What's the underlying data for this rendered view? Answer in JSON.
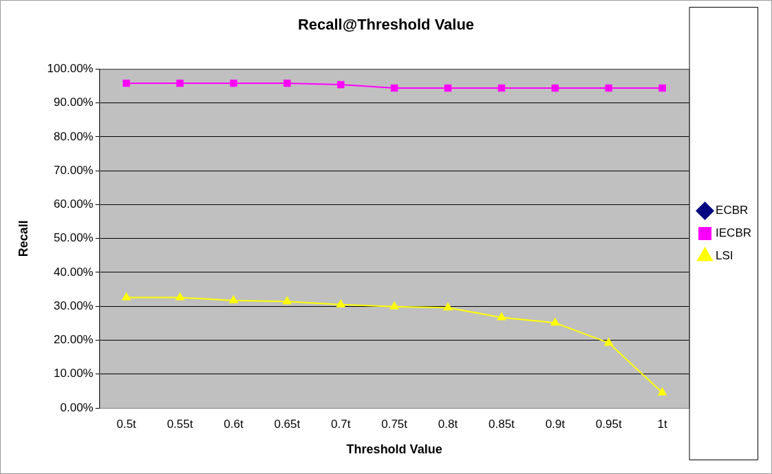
{
  "chart_data": {
    "type": "line",
    "title": "Recall@Threshold Value",
    "xlabel": "Threshold Value",
    "ylabel": "Recall",
    "categories": [
      "0.5t",
      "0.55t",
      "0.6t",
      "0.65t",
      "0.7t",
      "0.75t",
      "0.8t",
      "0.85t",
      "0.9t",
      "0.95t",
      "1t"
    ],
    "series": [
      {
        "name": "ECBR",
        "color": "#000080",
        "marker": "diamond",
        "values": [
          null,
          null,
          null,
          null,
          null,
          null,
          null,
          null,
          null,
          null,
          null
        ]
      },
      {
        "name": "IECBR",
        "color": "#ff00ff",
        "marker": "square",
        "values": [
          95.8,
          95.8,
          95.8,
          95.8,
          95.4,
          94.4,
          94.4,
          94.4,
          94.4,
          94.4,
          94.4
        ]
      },
      {
        "name": "LSI",
        "color": "#ffff00",
        "marker": "triangle",
        "values": [
          32.6,
          32.6,
          31.7,
          31.4,
          30.5,
          29.9,
          29.6,
          26.7,
          25.1,
          19.2,
          4.5
        ]
      }
    ],
    "ylim": [
      0,
      100
    ],
    "yticks": [
      {
        "value": 0,
        "label": "0.00%"
      },
      {
        "value": 10,
        "label": "10.00%"
      },
      {
        "value": 20,
        "label": "20.00%"
      },
      {
        "value": 30,
        "label": "30.00%"
      },
      {
        "value": 40,
        "label": "40.00%"
      },
      {
        "value": 50,
        "label": "50.00%"
      },
      {
        "value": 60,
        "label": "60.00%"
      },
      {
        "value": 70,
        "label": "70.00%"
      },
      {
        "value": 80,
        "label": "80.00%"
      },
      {
        "value": 90,
        "label": "90.00%"
      },
      {
        "value": 100,
        "label": "100.00%"
      }
    ],
    "grid": "y",
    "legend": "right",
    "line_style": "solid"
  }
}
